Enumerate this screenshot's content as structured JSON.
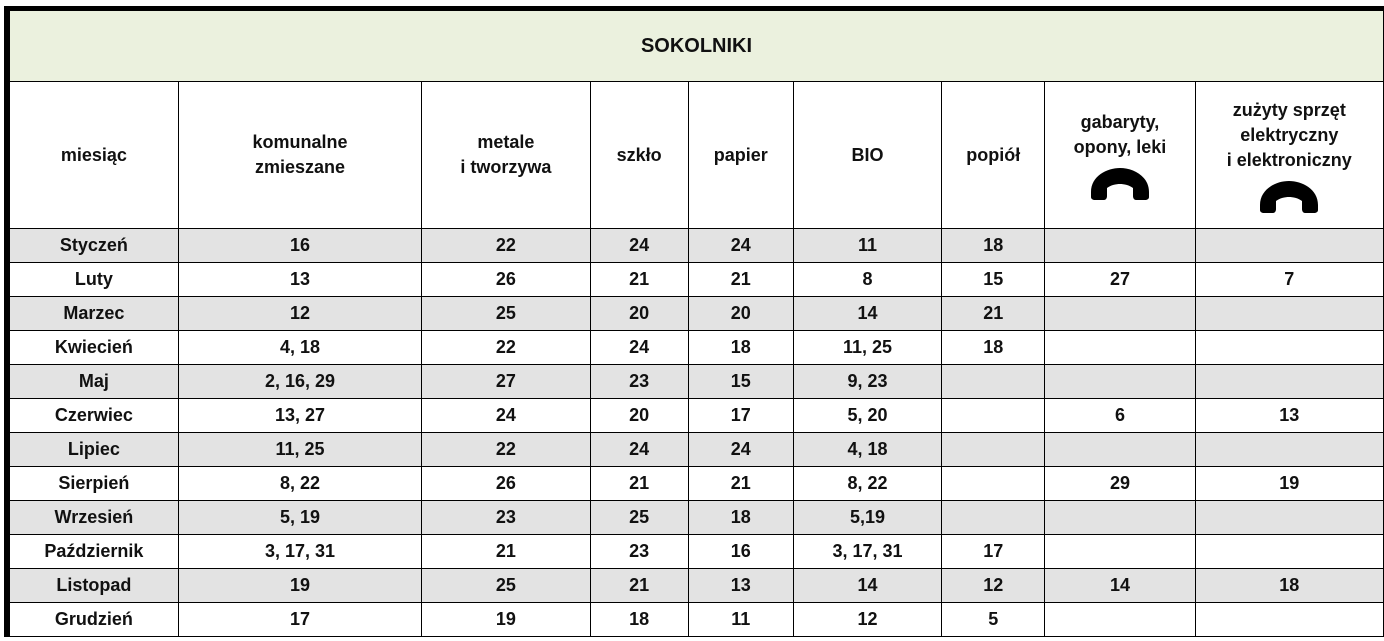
{
  "table": {
    "title": "SOKOLNIKI",
    "header": [
      [
        "miesiąc"
      ],
      [
        "komunalne",
        "zmieszane"
      ],
      [
        "metale",
        "i tworzywa"
      ],
      [
        "szkło"
      ],
      [
        "papier"
      ],
      [
        "BIO"
      ],
      [
        "popiół"
      ],
      [
        "gabaryty,",
        "opony, leki"
      ],
      [
        "zużyty sprzęt",
        "elektryczny",
        "i elektroniczny"
      ]
    ],
    "rows": [
      [
        "Styczeń",
        "16",
        "22",
        "24",
        "24",
        "11",
        "18",
        null,
        null
      ],
      [
        "Luty",
        "13",
        "26",
        "21",
        "21",
        "8",
        "15",
        "27",
        "7"
      ],
      [
        "Marzec",
        "12",
        "25",
        "20",
        "20",
        "14",
        "21",
        null,
        null
      ],
      [
        "Kwiecień",
        "4, 18",
        "22",
        "24",
        "18",
        "11, 25",
        "18",
        null,
        null
      ],
      [
        "Maj",
        "2, 16, 29",
        "27",
        "23",
        "15",
        "9, 23",
        null,
        null,
        null
      ],
      [
        "Czerwiec",
        "13, 27",
        "24",
        "20",
        "17",
        "5, 20",
        null,
        "6",
        "13"
      ],
      [
        "Lipiec",
        "11, 25",
        "22",
        "24",
        "24",
        "4, 18",
        null,
        null,
        null
      ],
      [
        "Sierpień",
        "8, 22",
        "26",
        "21",
        "21",
        "8, 22",
        null,
        "29",
        "19"
      ],
      [
        "Wrzesień",
        "5, 19",
        "23",
        "25",
        "18",
        "5,19",
        null,
        null,
        null
      ],
      [
        "Październik",
        "3, 17, 31",
        "21",
        "23",
        "16",
        "3, 17, 31",
        "17",
        null,
        null
      ],
      [
        "Listopad",
        "19",
        "25",
        "21",
        "13",
        "14",
        "12",
        "14",
        "18"
      ],
      [
        "Grudzień",
        "17",
        "19",
        "18",
        "11",
        "12",
        "5",
        null,
        null
      ]
    ]
  }
}
